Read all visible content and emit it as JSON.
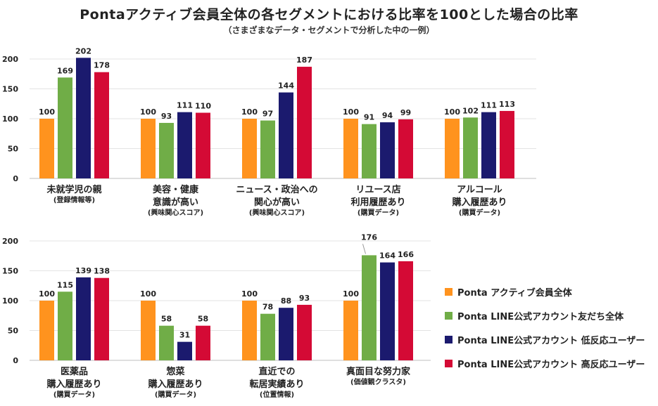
{
  "title": "Pontaアクティブ会員全体の各セグメントにおける比率を100とした場合の比率",
  "subtitle": "（さまざまなデータ・セグメントで分析した中の一例）",
  "series": [
    {
      "name": "Ponta アクティブ会員全体",
      "color": "#FF931E"
    },
    {
      "name": "Ponta LINE公式アカウント友だち全体",
      "color": "#70AD47"
    },
    {
      "name": "Ponta LINE公式アカウント 低反応ユーザー",
      "color": "#1B1A6E"
    },
    {
      "name": "Ponta LINE公式アカウント 高反応ユーザー",
      "color": "#D40A35"
    }
  ],
  "chart_data": [
    {
      "type": "bar",
      "ylim": [
        0,
        200
      ],
      "yticks": [
        0,
        50,
        100,
        150,
        200
      ],
      "groups": [
        {
          "label": [
            "未就学児の親"
          ],
          "note": "(登録情報等)",
          "values": [
            100,
            169,
            202,
            178
          ]
        },
        {
          "label": [
            "美容・健康",
            "意識が高い"
          ],
          "note": "(興味関心スコア)",
          "values": [
            100,
            93,
            111,
            110
          ]
        },
        {
          "label": [
            "ニュース・政治への",
            "関心が高い"
          ],
          "note": "(興味関心スコア)",
          "values": [
            100,
            97,
            144,
            187
          ]
        },
        {
          "label": [
            "リユース店",
            "利用履歴あり"
          ],
          "note": "(購買データ)",
          "values": [
            100,
            91,
            94,
            99
          ]
        },
        {
          "label": [
            "アルコール",
            "購入履歴あり"
          ],
          "note": "(購買データ)",
          "values": [
            100,
            102,
            111,
            113
          ]
        }
      ]
    },
    {
      "type": "bar",
      "ylim": [
        0,
        200
      ],
      "yticks": [
        0,
        50,
        100,
        150,
        200
      ],
      "groups": [
        {
          "label": [
            "医薬品",
            "購入履歴あり"
          ],
          "note": "(購買データ)",
          "values": [
            100,
            115,
            139,
            138
          ]
        },
        {
          "label": [
            "惣菜",
            "購入履歴あり"
          ],
          "note": "(購買データ)",
          "values": [
            100,
            58,
            31,
            58
          ]
        },
        {
          "label": [
            "直近での",
            "転居実績あり"
          ],
          "note": "(位置情報)",
          "values": [
            100,
            78,
            88,
            93
          ]
        },
        {
          "label": [
            "真面目な努力家"
          ],
          "note": "(価値観クラスタ)",
          "values": [
            100,
            176,
            164,
            166
          ]
        }
      ]
    }
  ]
}
